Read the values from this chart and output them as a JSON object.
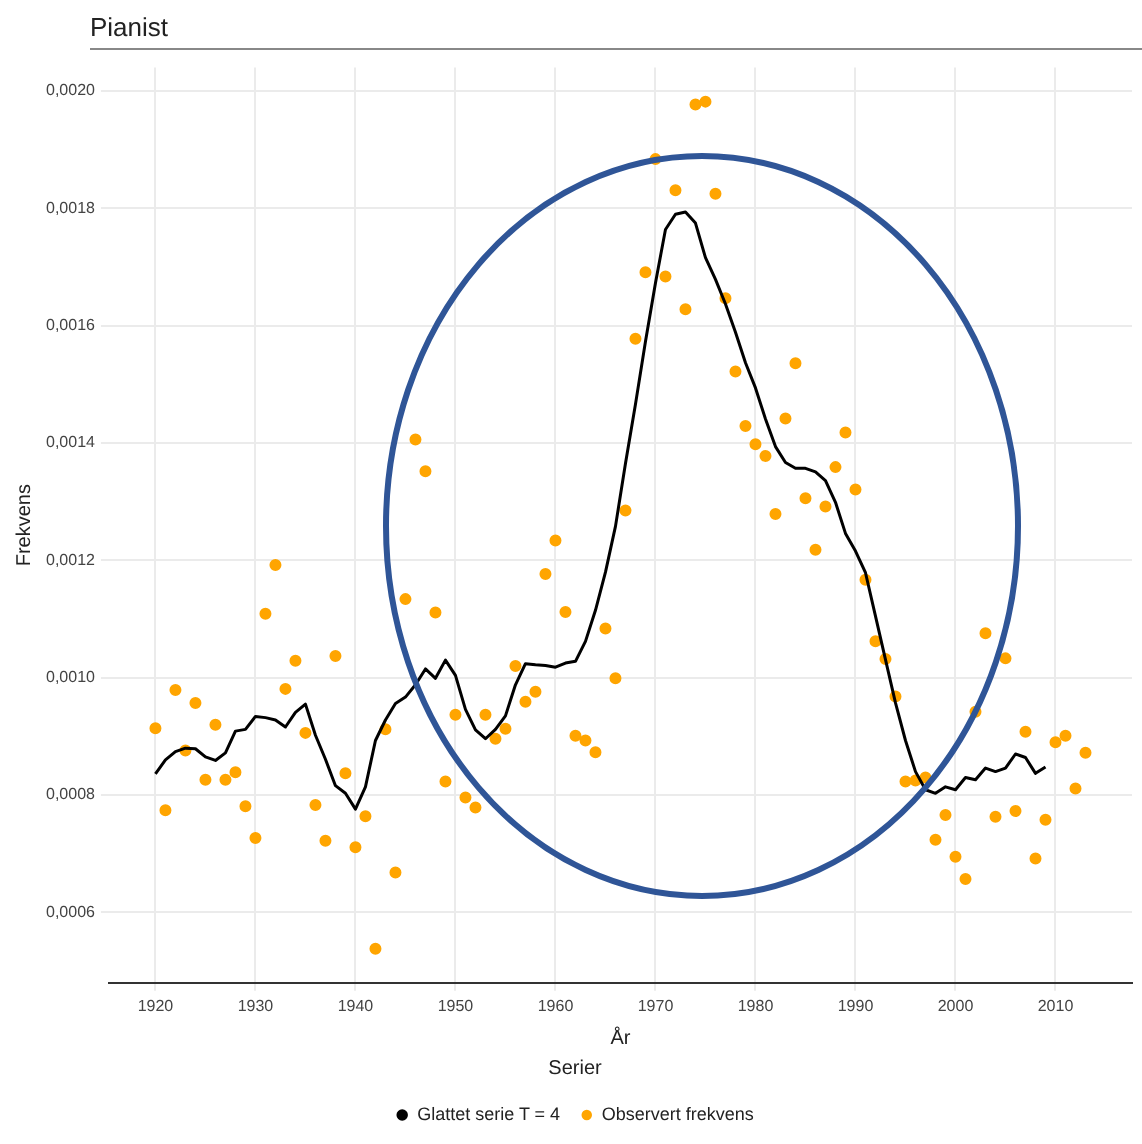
{
  "chart_data": {
    "type": "scatter",
    "title": "Pianist",
    "xlabel": "År",
    "ylabel": "Frekvens",
    "legend_title": "Serier",
    "legend": "bottom",
    "grid": true,
    "xlim": [
      1915.35,
      2017.65
    ],
    "ylim": [
      0.00048,
      0.00204
    ],
    "xticks": [
      1920,
      1930,
      1940,
      1950,
      1960,
      1970,
      1980,
      1990,
      2000,
      2010
    ],
    "yticks": [
      {
        "value": 0.0006,
        "label": "0,0006"
      },
      {
        "value": 0.0008,
        "label": "0,0008"
      },
      {
        "value": 0.001,
        "label": "0,0010"
      },
      {
        "value": 0.0012,
        "label": "0,0012"
      },
      {
        "value": 0.0014,
        "label": "0,0014"
      },
      {
        "value": 0.0016,
        "label": "0,0016"
      },
      {
        "value": 0.0018,
        "label": "0,0018"
      },
      {
        "value": 0.002,
        "label": "0,0020"
      }
    ],
    "series": [
      {
        "name": "Glattet serie T = 4",
        "type": "line",
        "color": "#000000",
        "marker": "none",
        "x": [
          1920,
          1921,
          1922,
          1923,
          1924,
          1925,
          1926,
          1927,
          1928,
          1929,
          1930,
          1931,
          1932,
          1933,
          1934,
          1935,
          1936,
          1937,
          1938,
          1939,
          1940,
          1941,
          1942,
          1943,
          1944,
          1945,
          1946,
          1947,
          1948,
          1949,
          1950,
          1951,
          1952,
          1953,
          1954,
          1955,
          1956,
          1957,
          1958,
          1959,
          1960,
          1961,
          1962,
          1963,
          1964,
          1965,
          1966,
          1967,
          1968,
          1969,
          1970,
          1971,
          1972,
          1973,
          1974,
          1975,
          1976,
          1977,
          1978,
          1979,
          1980,
          1981,
          1982,
          1983,
          1984,
          1985,
          1986,
          1987,
          1988,
          1989,
          1990,
          1991,
          1992,
          1993,
          1994,
          1995,
          1996,
          1997,
          1998,
          1999,
          2000,
          2001,
          2002,
          2003,
          2004,
          2005,
          2006,
          2007,
          2008,
          2009
        ],
        "values": [
          0.000836,
          0.00086,
          0.000874,
          0.00088,
          0.000879,
          0.000865,
          0.000859,
          0.000872,
          0.000909,
          0.000912,
          0.000934,
          0.000932,
          0.000928,
          0.000916,
          0.000941,
          0.000955,
          0.000902,
          0.000861,
          0.000816,
          0.000803,
          0.000776,
          0.000814,
          0.000893,
          0.000928,
          0.000956,
          0.000967,
          0.000988,
          0.001015,
          0.000999,
          0.00103,
          0.001004,
          0.000946,
          0.000911,
          0.000896,
          0.000912,
          0.000935,
          0.000988,
          0.001024,
          0.001022,
          0.001021,
          0.001018,
          0.001025,
          0.001028,
          0.001062,
          0.001115,
          0.00118,
          0.001258,
          0.001365,
          0.001466,
          0.001573,
          0.001673,
          0.001764,
          0.00179,
          0.001794,
          0.001775,
          0.001716,
          0.001679,
          0.001637,
          0.001589,
          0.001537,
          0.001494,
          0.001441,
          0.001394,
          0.001367,
          0.001357,
          0.001357,
          0.001351,
          0.001336,
          0.001299,
          0.001246,
          0.001216,
          0.001179,
          0.001105,
          0.001031,
          0.000957,
          0.000893,
          0.00084,
          0.000809,
          0.000803,
          0.000814,
          0.000809,
          0.00083,
          0.000826,
          0.000846,
          0.00084,
          0.000846,
          0.00087,
          0.000864,
          0.000837,
          0.000848
        ]
      },
      {
        "name": "Observert frekvens",
        "type": "scatter",
        "color": "#ffa500",
        "marker": "circle",
        "x": [
          1920,
          1921,
          1922,
          1923,
          1924,
          1925,
          1926,
          1927,
          1928,
          1929,
          1930,
          1931,
          1932,
          1933,
          1934,
          1935,
          1936,
          1937,
          1938,
          1939,
          1940,
          1941,
          1942,
          1943,
          1944,
          1945,
          1946,
          1947,
          1948,
          1949,
          1950,
          1951,
          1952,
          1953,
          1954,
          1955,
          1956,
          1957,
          1958,
          1959,
          1960,
          1961,
          1962,
          1963,
          1964,
          1965,
          1966,
          1967,
          1968,
          1969,
          1970,
          1971,
          1972,
          1973,
          1974,
          1975,
          1976,
          1977,
          1978,
          1979,
          1980,
          1981,
          1982,
          1983,
          1984,
          1985,
          1986,
          1987,
          1988,
          1989,
          1990,
          1991,
          1992,
          1993,
          1994,
          1995,
          1996,
          1997,
          1998,
          1999,
          2000,
          2001,
          2002,
          2003,
          2004,
          2005,
          2006,
          2007,
          2008,
          2009,
          2010,
          2011,
          2012,
          2013
        ],
        "values": [
          0.000914,
          0.000774,
          0.000979,
          0.000876,
          0.000957,
          0.000826,
          0.00092,
          0.000826,
          0.000839,
          0.000781,
          0.000727,
          0.001109,
          0.001192,
          0.000981,
          0.001029,
          0.000906,
          0.000783,
          0.000722,
          0.001037,
          0.000837,
          0.000711,
          0.000764,
          0.000538,
          0.000912,
          0.000668,
          0.001134,
          0.001406,
          0.001352,
          0.001111,
          0.000823,
          0.000937,
          0.000796,
          0.000779,
          0.000937,
          0.000896,
          0.000913,
          0.00102,
          0.000959,
          0.000976,
          0.001177,
          0.001234,
          0.001112,
          0.000901,
          0.000893,
          0.000873,
          0.001084,
          0.000999,
          0.001285,
          0.001578,
          0.001691,
          0.001884,
          0.001684,
          0.001831,
          0.001628,
          0.001977,
          0.001982,
          0.001825,
          0.001647,
          0.001522,
          0.001429,
          0.001398,
          0.001378,
          0.001279,
          0.001442,
          0.001536,
          0.001306,
          0.001218,
          0.001292,
          0.001359,
          0.001418,
          0.001321,
          0.001167,
          0.001062,
          0.001032,
          0.000968,
          0.000823,
          0.000825,
          0.00083,
          0.000724,
          0.000766,
          0.000695,
          0.000657,
          0.000942,
          0.001076,
          0.000763,
          0.001033,
          0.000773,
          0.000908,
          0.000692,
          0.000758,
          0.00089,
          0.000901,
          0.000811,
          0.000872
        ]
      }
    ]
  }
}
